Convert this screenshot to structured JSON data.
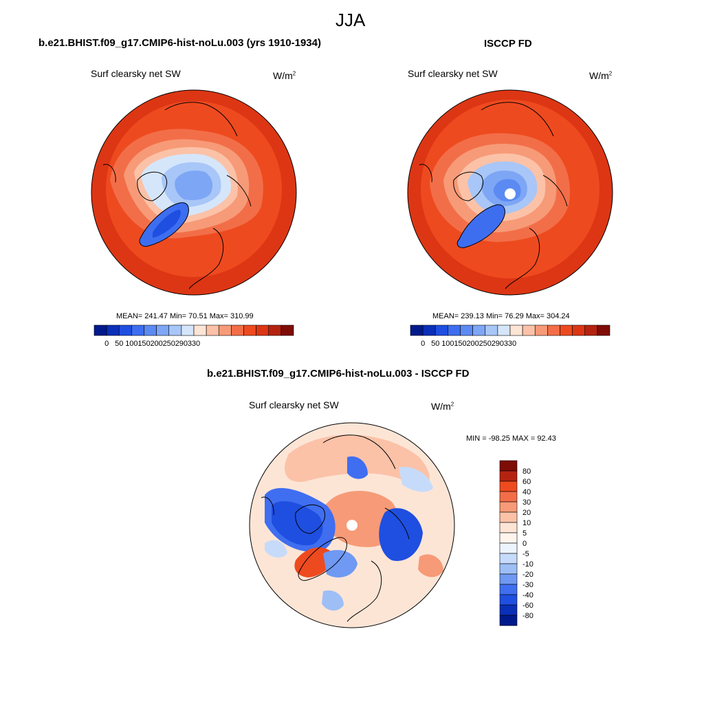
{
  "page": {
    "title": "JJA"
  },
  "panels": [
    {
      "heading": "b.e21.BHIST.f09_g17.CMIP6-hist-noLu.003 (yrs 1910-1934)",
      "variable": "Surf clearsky net SW",
      "units_base": "W/m",
      "units_exp": "2",
      "stats": "MEAN= 241.47  Min=  70.51  Max= 310.99"
    },
    {
      "heading": "ISCCP FD",
      "variable": "Surf clearsky net SW",
      "units_base": "W/m",
      "units_exp": "2",
      "stats": "MEAN= 239.13  Min=  76.29  Max= 304.24"
    },
    {
      "heading": "b.e21.BHIST.f09_g17.CMIP6-hist-noLu.003 - ISCCP FD",
      "variable": "Surf clearsky net SW",
      "units_base": "W/m",
      "units_exp": "2",
      "stats": "MIN = -98.25 MAX =  92.43"
    }
  ],
  "field_colorbar": {
    "tick_labels": [
      "0",
      "50",
      "100",
      "150",
      "200",
      "250",
      "290",
      "330"
    ],
    "colors": [
      "#001a8c",
      "#0a2fb8",
      "#1f4fe0",
      "#3d6ef0",
      "#5b8af2",
      "#7da6f5",
      "#a8c6f7",
      "#d5e6fb",
      "#fde5d6",
      "#fbc2a8",
      "#f79a77",
      "#f26e48",
      "#ee4a1f",
      "#dd3614",
      "#b52310",
      "#7f0c06"
    ]
  },
  "diff_colorbar": {
    "tick_labels": [
      "80",
      "60",
      "40",
      "30",
      "20",
      "10",
      "5",
      "0",
      "-5",
      "-10",
      "-20",
      "-30",
      "-40",
      "-60",
      "-80"
    ],
    "colors": [
      "#7f0c06",
      "#b52310",
      "#ee4a1f",
      "#f26e48",
      "#f79a77",
      "#fbc2a8",
      "#fde5d6",
      "#fff5ee",
      "#eef4fd",
      "#c6dbfa",
      "#9dbff6",
      "#6f99f2",
      "#3f6ef0",
      "#1f4fe0",
      "#0a2fb8",
      "#001a8c"
    ]
  }
}
